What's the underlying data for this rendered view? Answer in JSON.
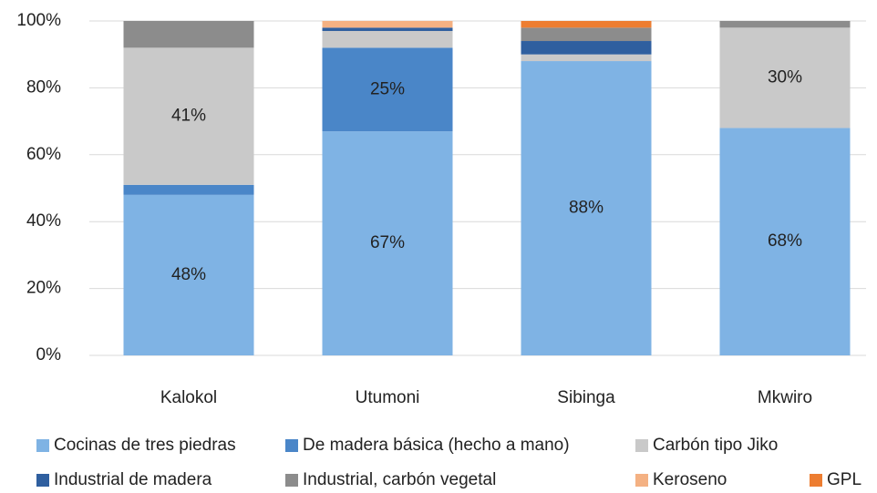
{
  "chart_data": {
    "type": "stacked_bar",
    "categories": [
      "Kalokol",
      "Utumoni",
      "Sibinga",
      "Mkwiro"
    ],
    "series": [
      {
        "name": "Cocinas de tres piedras",
        "color": "#7fb3e4",
        "values": [
          48,
          67,
          88,
          68
        ],
        "value_labels": [
          "48%",
          "67%",
          "88%",
          "68%"
        ]
      },
      {
        "name": "De madera básica (hecho a mano)",
        "color": "#4a86c8",
        "values": [
          3,
          25,
          0,
          0
        ],
        "value_labels": [
          null,
          "25%",
          null,
          null
        ]
      },
      {
        "name": "Carbón tipo Jiko",
        "color": "#c9c9c9",
        "values": [
          41,
          5,
          2,
          30
        ],
        "value_labels": [
          "41%",
          null,
          null,
          "30%"
        ]
      },
      {
        "name": "Industrial de madera",
        "color": "#2f5f9f",
        "values": [
          0,
          1,
          4,
          0
        ]
      },
      {
        "name": "Industrial, carbón vegetal",
        "color": "#8c8c8c",
        "values": [
          8,
          0,
          4,
          2
        ]
      },
      {
        "name": "Keroseno",
        "color": "#f4b183",
        "values": [
          0,
          2,
          0,
          0
        ]
      },
      {
        "name": "GPL",
        "color": "#ed7d31",
        "values": [
          0,
          0,
          2,
          0
        ]
      }
    ],
    "ylim": [
      0,
      100
    ],
    "yticks": [
      {
        "value": 0,
        "label": "0%"
      },
      {
        "value": 20,
        "label": "20%"
      },
      {
        "value": 40,
        "label": "40%"
      },
      {
        "value": 60,
        "label": "60%"
      },
      {
        "value": 80,
        "label": "80%"
      },
      {
        "value": 100,
        "label": "100%"
      }
    ],
    "grid": true
  }
}
